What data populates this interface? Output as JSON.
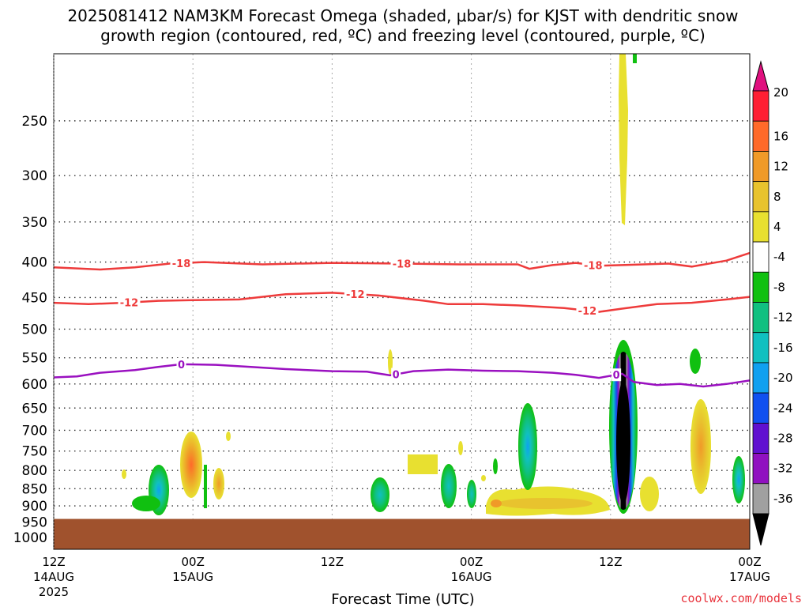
{
  "title": {
    "line1": "2025081412 NAM3KM Forecast Omega (shaded, μbar/s) for KJST with dendritic snow",
    "line2": "growth region (contoured, red, ºC) and freezing level (contoured, purple, ºC)"
  },
  "credit": "coolwx.com/models",
  "chart_data": {
    "type": "time-height cross section",
    "xlabel": "Forecast Time (UTC)",
    "x_ticks": [
      {
        "hour": 0,
        "line1": "12Z",
        "line2": "14AUG",
        "line3": "2025"
      },
      {
        "hour": 12,
        "line1": "00Z",
        "line2": "15AUG",
        "line3": ""
      },
      {
        "hour": 24,
        "line1": "12Z",
        "line2": "",
        "line3": ""
      },
      {
        "hour": 36,
        "line1": "00Z",
        "line2": "16AUG",
        "line3": ""
      },
      {
        "hour": 48,
        "line1": "12Z",
        "line2": "",
        "line3": ""
      },
      {
        "hour": 60,
        "line1": "00Z",
        "line2": "17AUG",
        "line3": ""
      }
    ],
    "xlim_hours": [
      0,
      60
    ],
    "y_ticks_hpa": [
      250,
      300,
      350,
      400,
      450,
      500,
      550,
      600,
      650,
      700,
      750,
      800,
      850,
      900,
      950,
      1000
    ],
    "ylim_hpa": [
      200,
      1040
    ],
    "y_scale": "log",
    "ground_level_hpa": 940,
    "colorbar": {
      "labels": [
        "20",
        "16",
        "12",
        "8",
        "4",
        "-4",
        "-8",
        "-12",
        "-16",
        "-20",
        "-24",
        "-28",
        "-32",
        "-36"
      ],
      "colors": [
        "#ff1f33",
        "#ff6a2a",
        "#f09a28",
        "#e8c32e",
        "#e8e030",
        "#ffffff",
        "#10c010",
        "#10c080",
        "#10c0c0",
        "#10a0f0",
        "#1050f0",
        "#6010d0",
        "#9010c0",
        "#a0a0a0"
      ],
      "top_arrow_color": "#e0107f",
      "bottom_arrow_color": "#000000"
    },
    "contours": [
      {
        "label": "-18",
        "color": "#ee3b3b",
        "points": [
          [
            0,
            407
          ],
          [
            4,
            410
          ],
          [
            7,
            407
          ],
          [
            10,
            402
          ],
          [
            13,
            400
          ],
          [
            18,
            403
          ],
          [
            24,
            401
          ],
          [
            30,
            402
          ],
          [
            35,
            403
          ],
          [
            40,
            403
          ],
          [
            41,
            409
          ],
          [
            43,
            404
          ],
          [
            45,
            401
          ],
          [
            47,
            405
          ],
          [
            49,
            404
          ],
          [
            53,
            402
          ],
          [
            55,
            406
          ],
          [
            58,
            398
          ],
          [
            60,
            388
          ]
        ],
        "label_hours": [
          11,
          30,
          46.5
        ]
      },
      {
        "label": "-12",
        "color": "#ee3b3b",
        "points": [
          [
            0,
            458
          ],
          [
            3,
            460
          ],
          [
            6,
            458
          ],
          [
            9,
            455
          ],
          [
            12,
            454
          ],
          [
            16,
            453
          ],
          [
            20,
            445
          ],
          [
            24,
            443
          ],
          [
            28,
            447
          ],
          [
            32,
            455
          ],
          [
            34,
            460
          ],
          [
            37,
            460
          ],
          [
            40,
            462
          ],
          [
            44,
            466
          ],
          [
            47,
            472
          ],
          [
            49,
            467
          ],
          [
            52,
            460
          ],
          [
            55,
            458
          ],
          [
            58,
            453
          ],
          [
            60,
            449
          ]
        ],
        "label_hours": [
          6.5,
          26,
          46
        ]
      },
      {
        "label": "0",
        "color": "#9a10c0",
        "points": [
          [
            0,
            587
          ],
          [
            2,
            585
          ],
          [
            4,
            578
          ],
          [
            7,
            573
          ],
          [
            9,
            567
          ],
          [
            11,
            562
          ],
          [
            14,
            563
          ],
          [
            17,
            567
          ],
          [
            20,
            571
          ],
          [
            24,
            575
          ],
          [
            27,
            576
          ],
          [
            29,
            583
          ],
          [
            31,
            575
          ],
          [
            34,
            572
          ],
          [
            37,
            574
          ],
          [
            40,
            575
          ],
          [
            43,
            578
          ],
          [
            45,
            582
          ],
          [
            47,
            588
          ],
          [
            49,
            580
          ],
          [
            50,
            596
          ],
          [
            52,
            602
          ],
          [
            54,
            600
          ],
          [
            56,
            605
          ],
          [
            58,
            600
          ],
          [
            60,
            593
          ]
        ],
        "label_hours": [
          11,
          29.5,
          48.5
        ]
      }
    ]
  }
}
